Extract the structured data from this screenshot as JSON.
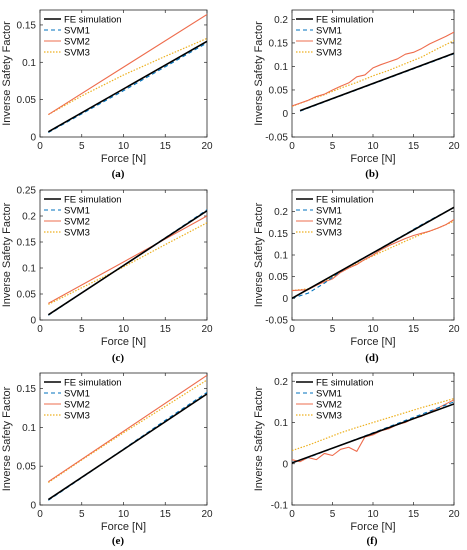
{
  "styles": {
    "FE simulation": {
      "color": "#000000",
      "dash": "",
      "width": 1.6
    },
    "SVM1": {
      "color": "#0072BD",
      "dash": "4,3",
      "width": 1.1
    },
    "SVM2": {
      "color": "#EE6C4D",
      "dash": "",
      "width": 1.1
    },
    "SVM3": {
      "color": "#EDB120",
      "dash": "1.5,1.5",
      "width": 1.2
    }
  },
  "chart_data": [
    {
      "type": "line",
      "label": "(a)",
      "xlabel": "Force [N]",
      "ylabel": "Inverse Safety Factor",
      "xlim": [
        0,
        20
      ],
      "ylim": [
        0,
        0.17
      ],
      "xticks": [
        0,
        5,
        10,
        15,
        20
      ],
      "yticks": [
        0,
        0.05,
        0.1,
        0.15
      ],
      "ytick_labels": [
        "0",
        "0.05",
        "0.1",
        "0.15"
      ],
      "legend": [
        "FE simulation",
        "SVM1",
        "SVM2",
        "SVM3"
      ],
      "legend_position": "top-left",
      "series": [
        {
          "name": "FE simulation",
          "x": [
            1,
            20
          ],
          "y": [
            0.007,
            0.128
          ]
        },
        {
          "name": "SVM1",
          "x": [
            1,
            5,
            10,
            15,
            20
          ],
          "y": [
            0.006,
            0.031,
            0.062,
            0.094,
            0.126
          ]
        },
        {
          "name": "SVM2",
          "x": [
            1,
            20
          ],
          "y": [
            0.03,
            0.164
          ]
        },
        {
          "name": "SVM3",
          "x": [
            1,
            5,
            10,
            15,
            20
          ],
          "y": [
            0.03,
            0.055,
            0.083,
            0.108,
            0.132
          ]
        }
      ]
    },
    {
      "type": "line",
      "label": "(b)",
      "xlabel": "Force [N]",
      "ylabel": "Inverse Safety Factor",
      "xlim": [
        0,
        20
      ],
      "ylim": [
        -0.05,
        0.22
      ],
      "xticks": [
        0,
        5,
        10,
        15,
        20
      ],
      "yticks": [
        -0.05,
        0,
        0.05,
        0.1,
        0.15,
        0.2
      ],
      "ytick_labels": [
        "-0.05",
        "0",
        "0.05",
        "0.1",
        "0.15",
        "0.2"
      ],
      "legend": [
        "FE simulation",
        "SVM1",
        "SVM2",
        "SVM3"
      ],
      "legend_position": "top-left",
      "series": [
        {
          "name": "FE simulation",
          "x": [
            1,
            20
          ],
          "y": [
            0.006,
            0.128
          ]
        },
        {
          "name": "SVM1",
          "x": [
            1,
            5,
            10,
            15,
            20
          ],
          "y": [
            0.005,
            0.031,
            0.063,
            0.095,
            0.127
          ]
        },
        {
          "name": "SVM2",
          "x": [
            0,
            1,
            2,
            3,
            4,
            5,
            6,
            7,
            8,
            9,
            10,
            11,
            12,
            13,
            14,
            15,
            16,
            17,
            18,
            19,
            20
          ],
          "y": [
            0.016,
            0.022,
            0.028,
            0.036,
            0.041,
            0.05,
            0.058,
            0.065,
            0.078,
            0.082,
            0.097,
            0.104,
            0.11,
            0.116,
            0.126,
            0.13,
            0.138,
            0.148,
            0.156,
            0.164,
            0.173
          ]
        },
        {
          "name": "SVM3",
          "x": [
            0,
            2,
            4,
            6,
            8,
            10,
            12,
            14,
            16,
            18,
            20
          ],
          "y": [
            0.015,
            0.028,
            0.04,
            0.054,
            0.066,
            0.08,
            0.092,
            0.106,
            0.12,
            0.138,
            0.155
          ]
        }
      ]
    },
    {
      "type": "line",
      "label": "(c)",
      "xlabel": "Force [N]",
      "ylabel": "Inverse Safety Factor",
      "xlim": [
        0,
        20
      ],
      "ylim": [
        0,
        0.25
      ],
      "xticks": [
        0,
        5,
        10,
        15,
        20
      ],
      "yticks": [
        0,
        0.05,
        0.1,
        0.15,
        0.2,
        0.25
      ],
      "ytick_labels": [
        "0",
        "0.05",
        "0.1",
        "0.15",
        "0.2",
        "0.25"
      ],
      "legend": [
        "FE simulation",
        "SVM1",
        "SVM2",
        "SVM3"
      ],
      "legend_position": "top-left",
      "series": [
        {
          "name": "FE simulation",
          "x": [
            1,
            20
          ],
          "y": [
            0.01,
            0.21
          ]
        },
        {
          "name": "SVM1",
          "x": [
            1,
            5,
            10,
            15,
            20
          ],
          "y": [
            0.009,
            0.052,
            0.105,
            0.158,
            0.212
          ]
        },
        {
          "name": "SVM2",
          "x": [
            1,
            20
          ],
          "y": [
            0.032,
            0.2
          ]
        },
        {
          "name": "SVM3",
          "x": [
            1,
            5,
            10,
            15,
            20
          ],
          "y": [
            0.03,
            0.062,
            0.102,
            0.145,
            0.187
          ]
        }
      ]
    },
    {
      "type": "line",
      "label": "(d)",
      "xlabel": "Force [N]",
      "ylabel": "Inverse Safety Factor",
      "xlim": [
        0,
        20
      ],
      "ylim": [
        -0.05,
        0.25
      ],
      "xticks": [
        0,
        5,
        10,
        15,
        20
      ],
      "yticks": [
        -0.05,
        0,
        0.05,
        0.1,
        0.15,
        0.2
      ],
      "ytick_labels": [
        "-0.05",
        "0",
        "0.05",
        "0.1",
        "0.15",
        "0.2"
      ],
      "legend": [
        "FE simulation",
        "SVM1",
        "SVM2",
        "SVM3"
      ],
      "legend_position": "top-left",
      "series": [
        {
          "name": "FE simulation",
          "x": [
            0,
            20
          ],
          "y": [
            0.0,
            0.21
          ]
        },
        {
          "name": "SVM1",
          "x": [
            0,
            2,
            4,
            6,
            8,
            10,
            12,
            14,
            16,
            18,
            20
          ],
          "y": [
            0.0,
            0.012,
            0.035,
            0.062,
            0.085,
            0.105,
            0.127,
            0.148,
            0.17,
            0.19,
            0.21
          ]
        },
        {
          "name": "SVM2",
          "x": [
            0,
            2,
            3,
            4,
            5,
            6,
            7,
            8,
            9,
            10,
            11,
            12,
            13,
            14,
            15,
            16,
            17,
            18,
            19,
            20
          ],
          "y": [
            0.018,
            0.02,
            0.03,
            0.038,
            0.045,
            0.06,
            0.07,
            0.078,
            0.09,
            0.1,
            0.112,
            0.122,
            0.13,
            0.138,
            0.145,
            0.15,
            0.155,
            0.162,
            0.17,
            0.182
          ]
        },
        {
          "name": "SVM3",
          "x": [
            0,
            2,
            4,
            6,
            8,
            10,
            12,
            14,
            16,
            18,
            20
          ],
          "y": [
            0.018,
            0.022,
            0.04,
            0.06,
            0.08,
            0.098,
            0.115,
            0.132,
            0.148,
            0.162,
            0.178
          ]
        }
      ]
    },
    {
      "type": "line",
      "label": "(e)",
      "xlabel": "Force [N]",
      "ylabel": "Inverse Safety Factor",
      "xlim": [
        0,
        20
      ],
      "ylim": [
        0,
        0.17
      ],
      "xticks": [
        0,
        5,
        10,
        15,
        20
      ],
      "yticks": [
        0,
        0.05,
        0.1,
        0.15
      ],
      "ytick_labels": [
        "0",
        "0.05",
        "0.1",
        "0.15"
      ],
      "legend": [
        "FE simulation",
        "SVM1",
        "SVM2",
        "SVM3"
      ],
      "legend_position": "top-left",
      "series": [
        {
          "name": "FE simulation",
          "x": [
            1,
            20
          ],
          "y": [
            0.007,
            0.143
          ]
        },
        {
          "name": "SVM1",
          "x": [
            1,
            5,
            10,
            15,
            20
          ],
          "y": [
            0.006,
            0.035,
            0.072,
            0.109,
            0.145
          ]
        },
        {
          "name": "SVM2",
          "x": [
            1,
            20
          ],
          "y": [
            0.03,
            0.167
          ]
        },
        {
          "name": "SVM3",
          "x": [
            1,
            5,
            10,
            15,
            20
          ],
          "y": [
            0.029,
            0.058,
            0.093,
            0.127,
            0.161
          ]
        }
      ]
    },
    {
      "type": "line",
      "label": "(f)",
      "xlabel": "Force [N]",
      "ylabel": "Inverse Safety Factor",
      "xlim": [
        0,
        20
      ],
      "ylim": [
        -0.1,
        0.22
      ],
      "xticks": [
        0,
        5,
        10,
        15,
        20
      ],
      "yticks": [
        -0.1,
        0,
        0.1,
        0.2
      ],
      "ytick_labels": [
        "-0.1",
        "0",
        "0.1",
        "0.2"
      ],
      "legend": [
        "FE simulation",
        "SVM1",
        "SVM2",
        "SVM3"
      ],
      "legend_position": "top-left",
      "series": [
        {
          "name": "FE simulation",
          "x": [
            0,
            20
          ],
          "y": [
            0.002,
            0.145
          ]
        },
        {
          "name": "SVM1",
          "x": [
            0,
            2,
            4,
            6,
            8,
            10,
            12,
            14,
            16,
            18,
            20
          ],
          "y": [
            0.003,
            0.015,
            0.03,
            0.045,
            0.06,
            0.075,
            0.09,
            0.105,
            0.12,
            0.135,
            0.15
          ]
        },
        {
          "name": "SVM2",
          "x": [
            0,
            1,
            2,
            3,
            4,
            5,
            6,
            7,
            8,
            9,
            10,
            11,
            12,
            13,
            14,
            15,
            16,
            17,
            18,
            19,
            20
          ],
          "y": [
            0.01,
            0.005,
            0.015,
            0.01,
            0.025,
            0.02,
            0.035,
            0.04,
            0.03,
            0.065,
            0.07,
            0.08,
            0.085,
            0.095,
            0.1,
            0.11,
            0.115,
            0.125,
            0.135,
            0.145,
            0.155
          ]
        },
        {
          "name": "SVM3",
          "x": [
            0,
            2,
            4,
            6,
            8,
            10,
            12,
            14,
            16,
            18,
            20
          ],
          "y": [
            0.032,
            0.045,
            0.06,
            0.075,
            0.088,
            0.1,
            0.112,
            0.124,
            0.136,
            0.147,
            0.158
          ]
        }
      ]
    }
  ]
}
